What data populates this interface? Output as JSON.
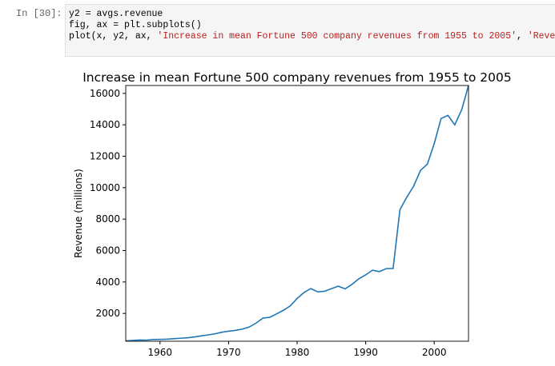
{
  "cell": {
    "prompt": "In [30]:",
    "code": [
      [
        "y2 = avgs.revenue"
      ],
      [
        "fig, ax = plt.subplots()"
      ],
      [
        "plot(x, y2, ax, ",
        "'Increase in mean Fortune 500 company revenues from 1955 to 2005'",
        ", ",
        "'Revenue (milli"
      ]
    ]
  },
  "chart_data": {
    "type": "line",
    "title": "Increase in mean Fortune 500 company revenues from 1955 to 2005",
    "y_label": "Revenue (millions)",
    "x": [
      1955,
      1956,
      1957,
      1958,
      1959,
      1960,
      1961,
      1962,
      1963,
      1964,
      1965,
      1966,
      1967,
      1968,
      1969,
      1970,
      1971,
      1972,
      1973,
      1974,
      1975,
      1976,
      1977,
      1978,
      1979,
      1980,
      1981,
      1982,
      1983,
      1984,
      1985,
      1986,
      1987,
      1988,
      1989,
      1990,
      1991,
      1992,
      1993,
      1994,
      1995,
      1996,
      1997,
      1998,
      1999,
      2000,
      2001,
      2002,
      2003,
      2004,
      2005
    ],
    "series": [
      {
        "color": "#1f77b4",
        "values": [
          250,
          280,
          310,
          300,
          340,
          350,
          360,
          390,
          420,
          450,
          500,
          570,
          630,
          700,
          800,
          870,
          920,
          1000,
          1130,
          1380,
          1700,
          1750,
          1970,
          2200,
          2480,
          2950,
          3330,
          3580,
          3370,
          3410,
          3570,
          3730,
          3560,
          3850,
          4200,
          4450,
          4750,
          4660,
          4850,
          4860,
          8600,
          9400,
          10100,
          11100,
          11500,
          12800,
          14400,
          14600,
          14000,
          14950,
          16500
        ]
      }
    ],
    "xlim": [
      1955,
      2005
    ],
    "xticks": [
      1960,
      1970,
      1980,
      1990,
      2000
    ],
    "ylim": [
      230,
      16500
    ],
    "yticks": [
      2000,
      4000,
      6000,
      8000,
      10000,
      12000,
      14000,
      16000
    ],
    "grid": false
  }
}
